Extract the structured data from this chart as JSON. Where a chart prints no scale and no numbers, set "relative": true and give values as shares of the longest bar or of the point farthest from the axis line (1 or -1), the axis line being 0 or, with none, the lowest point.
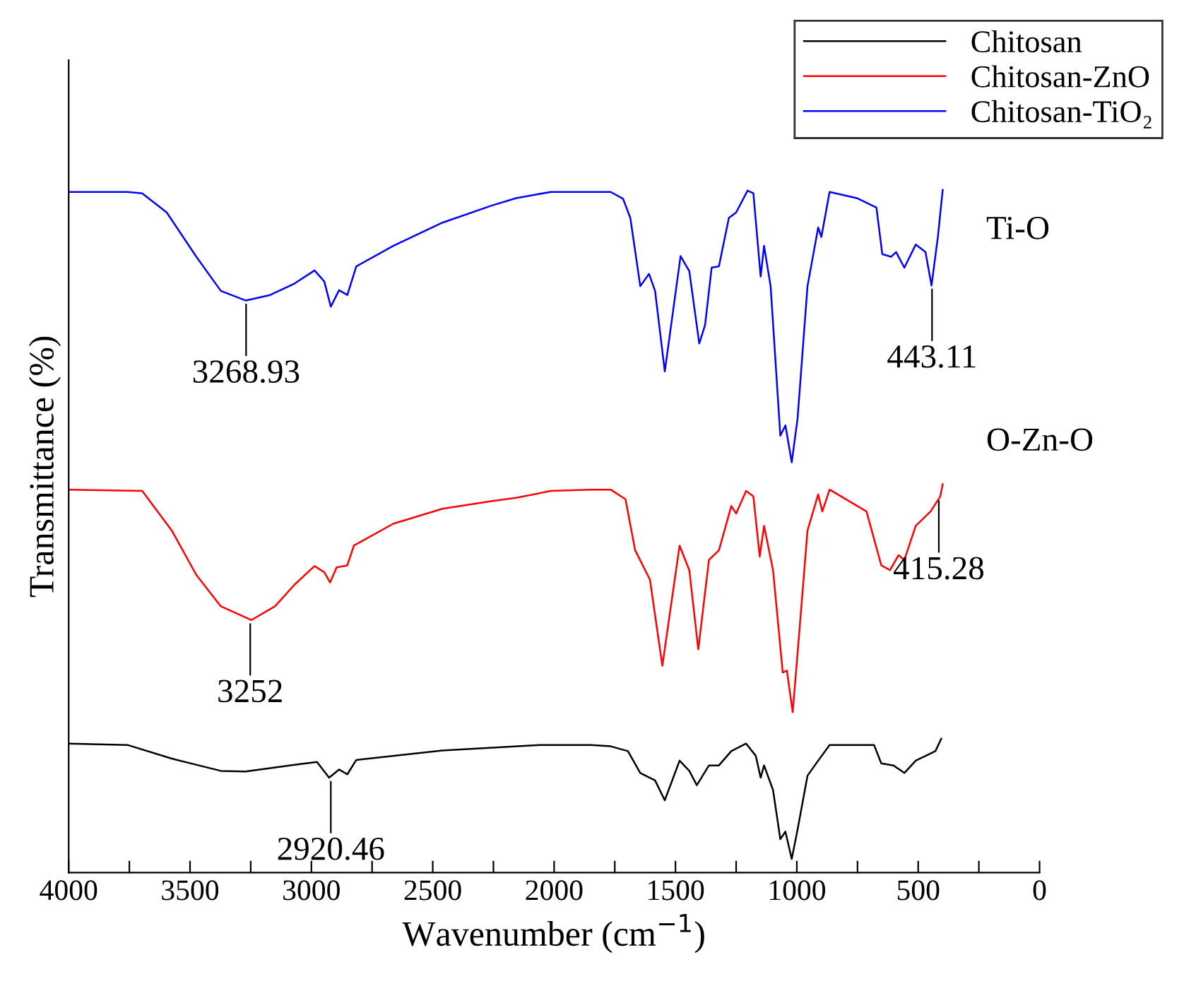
{
  "chart_data": {
    "type": "line",
    "relative": true,
    "xlabel": "Wavenumber (cm$^{−1}$)",
    "ylabel": "Transmittance (%)",
    "xlim": [
      4000,
      0
    ],
    "xticks": [
      4000,
      {
        "value": 3750,
        "label": null
      },
      3500,
      {
        "value": 3250,
        "label": null
      },
      3000,
      {
        "value": 2750,
        "label": null
      },
      2500,
      {
        "value": 2250,
        "label": null
      },
      2000,
      {
        "value": 1750,
        "label": null
      },
      1500,
      {
        "value": 1250,
        "label": null
      },
      1000,
      {
        "value": 750,
        "label": null
      },
      500,
      {
        "value": 250,
        "label": null
      },
      0
    ],
    "legend": "top right",
    "grid": false,
    "marker": "none",
    "line_style": "solid",
    "series": [
      {
        "name": "Chitosan",
        "color": "#000000",
        "x": [
          4000,
          3758,
          3575,
          3373,
          3271,
          3069,
          2977,
          2927,
          2886,
          2852,
          2815,
          2460,
          2055,
          1848,
          1767,
          1696,
          1645,
          1584,
          1544,
          1483,
          1443,
          1412,
          1362,
          1321,
          1270,
          1209,
          1169,
          1149,
          1135,
          1098,
          1068,
          1047,
          1021,
          997,
          956,
          912,
          865,
          682,
          652,
          602,
          557,
          510,
          429,
          405
        ],
        "values": [
          0.189,
          0.187,
          0.167,
          0.149,
          0.148,
          0.158,
          0.162,
          0.139,
          0.151,
          0.144,
          0.165,
          0.179,
          0.187,
          0.187,
          0.185,
          0.178,
          0.146,
          0.135,
          0.106,
          0.164,
          0.149,
          0.128,
          0.157,
          0.157,
          0.178,
          0.189,
          0.171,
          0.139,
          0.157,
          0.121,
          0.049,
          0.06,
          0.02,
          0.063,
          0.142,
          0.164,
          0.187,
          0.187,
          0.16,
          0.157,
          0.146,
          0.164,
          0.178,
          0.196
        ]
      },
      {
        "name": "Chitosan-ZnO",
        "color": "#ff0000",
        "x": [
          4000,
          3697,
          3575,
          3474,
          3373,
          3247,
          3150,
          3069,
          2987,
          2947,
          2923,
          2896,
          2852,
          2825,
          2663,
          2460,
          2258,
          2156,
          2014,
          1848,
          1767,
          1706,
          1666,
          1605,
          1554,
          1483,
          1443,
          1406,
          1362,
          1321,
          1270,
          1250,
          1209,
          1179,
          1153,
          1135,
          1098,
          1058,
          1041,
          1017,
          997,
          956,
          912,
          895,
          865,
          713,
          652,
          616,
          581,
          557,
          510,
          449,
          409,
          399
        ],
        "values": [
          0.561,
          0.559,
          0.501,
          0.436,
          0.39,
          0.37,
          0.39,
          0.422,
          0.449,
          0.44,
          0.425,
          0.447,
          0.45,
          0.479,
          0.511,
          0.533,
          0.544,
          0.549,
          0.559,
          0.561,
          0.561,
          0.547,
          0.472,
          0.429,
          0.303,
          0.479,
          0.443,
          0.327,
          0.458,
          0.472,
          0.537,
          0.526,
          0.559,
          0.551,
          0.463,
          0.508,
          0.443,
          0.293,
          0.296,
          0.235,
          0.321,
          0.501,
          0.554,
          0.529,
          0.561,
          0.529,
          0.45,
          0.443,
          0.465,
          0.458,
          0.508,
          0.529,
          0.551,
          0.569
        ]
      },
      {
        "name": "Chitosan-TiO₂",
        "color": "#0000ff",
        "x": [
          4000,
          3758,
          3697,
          3596,
          3474,
          3373,
          3271,
          3170,
          3069,
          2987,
          2947,
          2920,
          2886,
          2852,
          2815,
          2663,
          2460,
          2258,
          2156,
          2014,
          1848,
          1767,
          1716,
          1686,
          1645,
          1609,
          1584,
          1544,
          1479,
          1443,
          1402,
          1378,
          1351,
          1321,
          1280,
          1250,
          1203,
          1179,
          1149,
          1135,
          1108,
          1068,
          1047,
          1021,
          997,
          956,
          912,
          899,
          865,
          753,
          672,
          648,
          612,
          591,
          557,
          510,
          470,
          445,
          419,
          399
        ],
        "values": [
          0.997,
          0.997,
          0.995,
          0.967,
          0.902,
          0.852,
          0.838,
          0.846,
          0.863,
          0.882,
          0.866,
          0.829,
          0.853,
          0.846,
          0.888,
          0.918,
          0.952,
          0.977,
          0.988,
          0.997,
          0.997,
          0.997,
          0.987,
          0.959,
          0.859,
          0.877,
          0.852,
          0.734,
          0.903,
          0.881,
          0.775,
          0.802,
          0.886,
          0.888,
          0.959,
          0.967,
          0.999,
          0.995,
          0.873,
          0.918,
          0.859,
          0.64,
          0.655,
          0.601,
          0.665,
          0.859,
          0.945,
          0.931,
          0.997,
          0.988,
          0.974,
          0.906,
          0.902,
          0.909,
          0.886,
          0.92,
          0.909,
          0.86,
          0.931,
          1.0
        ]
      }
    ],
    "annotations": [
      {
        "text": "3268.93",
        "x": 3269,
        "y": 0.838
      },
      {
        "text": "443.11",
        "x": 443,
        "y": 0.86
      },
      {
        "text": "Ti-O"
      },
      {
        "text": "3252",
        "x": 3252,
        "y": 0.37
      },
      {
        "text": "415.28",
        "x": 415,
        "y": 0.55
      },
      {
        "text": "O-Zn-O"
      },
      {
        "text": "2920.46",
        "x": 2920,
        "y": 0.139
      }
    ]
  }
}
